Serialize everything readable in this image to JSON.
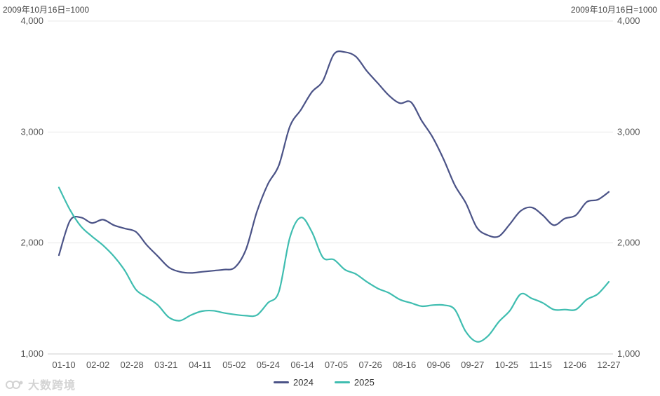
{
  "unit_label_left": "2009年10月16日=1000",
  "unit_label_right": "2009年10月16日=1000",
  "watermark": "大数跨境",
  "colors": {
    "s2024": "#4b5387",
    "s2025": "#3fbdb0",
    "grid": "#e8e8e8",
    "axis": "#555555"
  },
  "chart_data": {
    "type": "line",
    "ylim": [
      1000,
      4000
    ],
    "y_ticks": [
      "1,000",
      "2,000",
      "3,000",
      "4,000"
    ],
    "y_tick_values": [
      1000,
      2000,
      3000,
      4000
    ],
    "x_tick_labels": [
      "01-10",
      "02-02",
      "02-28",
      "03-21",
      "04-11",
      "05-02",
      "05-24",
      "06-14",
      "07-05",
      "07-26",
      "08-16",
      "09-06",
      "09-27",
      "10-25",
      "11-15",
      "12-06",
      "12-27"
    ],
    "series": [
      {
        "name": "2024",
        "values": [
          1890,
          2200,
          2230,
          2180,
          2210,
          2160,
          2130,
          2100,
          1980,
          1880,
          1780,
          1740,
          1730,
          1740,
          1750,
          1760,
          1780,
          1940,
          2280,
          2530,
          2700,
          3050,
          3200,
          3360,
          3460,
          3700,
          3720,
          3680,
          3550,
          3440,
          3330,
          3260,
          3270,
          3100,
          2950,
          2750,
          2520,
          2360,
          2140,
          2070,
          2060,
          2170,
          2290,
          2320,
          2250,
          2160,
          2220,
          2250,
          2370,
          2390,
          2460
        ]
      },
      {
        "name": "2025",
        "values": [
          2500,
          2300,
          2150,
          2060,
          1980,
          1880,
          1750,
          1580,
          1510,
          1440,
          1330,
          1300,
          1350,
          1385,
          1390,
          1370,
          1355,
          1345,
          1350,
          1460,
          1560,
          2050,
          2230,
          2100,
          1870,
          1850,
          1760,
          1720,
          1650,
          1590,
          1550,
          1490,
          1460,
          1430,
          1440,
          1440,
          1400,
          1200,
          1110,
          1160,
          1290,
          1390,
          1540,
          1500,
          1460,
          1400,
          1400,
          1400,
          1490,
          1540,
          1650
        ]
      }
    ]
  }
}
